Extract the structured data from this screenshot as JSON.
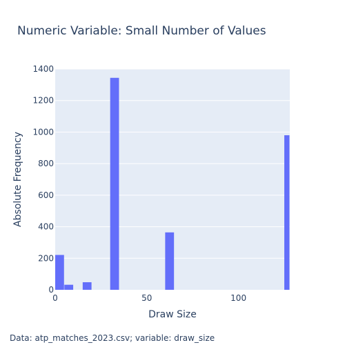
{
  "chart_data": {
    "type": "bar",
    "title": "Numeric Variable: Small Number of Values",
    "xlabel": "Draw Size",
    "ylabel": "Absolute Frequency",
    "caption": "Data: atp_matches_2023.csv; variable: draw_size",
    "xlim": [
      0,
      128
    ],
    "ylim": [
      0,
      1400
    ],
    "x_ticks": [
      0,
      50,
      100
    ],
    "y_ticks": [
      0,
      200,
      400,
      600,
      800,
      1000,
      1200,
      1400
    ],
    "bin_width": 5,
    "bins": [
      {
        "x0": 0,
        "x1": 5,
        "value": 221
      },
      {
        "x0": 5,
        "x1": 10,
        "value": 32
      },
      {
        "x0": 15,
        "x1": 20,
        "value": 48
      },
      {
        "x0": 30,
        "x1": 35,
        "value": 1344
      },
      {
        "x0": 60,
        "x1": 65,
        "value": 364
      },
      {
        "x0": 125,
        "x1": 130,
        "value": 980
      }
    ],
    "bar_color": "#636efa",
    "plot_background": "#e5ecf6",
    "grid": true
  }
}
